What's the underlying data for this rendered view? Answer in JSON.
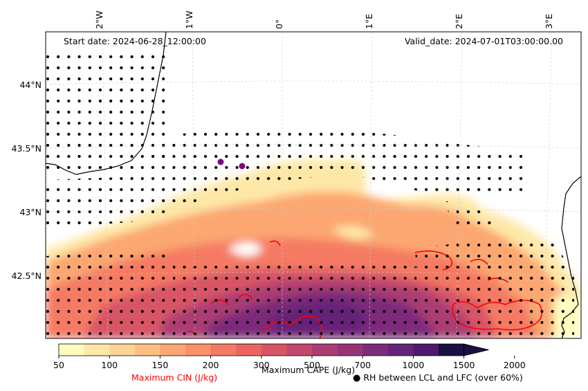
{
  "header": {
    "start_date": "Start date: 2024-06-28_12:00:00",
    "valid_date": "Valid_date: 2024-07-01T03:00:00.00"
  },
  "lon_labels": [
    "2°W",
    "1°W",
    "0°",
    "1°E",
    "2°E",
    "3°E"
  ],
  "lat_labels": [
    "44°N",
    "43.5°N",
    "43°N",
    "42.5°N"
  ],
  "colorbar": {
    "ticks": [
      "50",
      "100",
      "150",
      "200",
      "300",
      "500",
      "700",
      "1000",
      "1500",
      "2000"
    ],
    "colors": [
      "#fffdbf",
      "#fee8a7",
      "#fdd595",
      "#fdc081",
      "#fca771",
      "#fb9168",
      "#f57a63",
      "#ea6562",
      "#d85466",
      "#c2486d",
      "#ab3d73",
      "#953577",
      "#7d2c7a",
      "#652479",
      "#4d1a6e",
      "#1b1042"
    ],
    "title": "Maximum CAPE (J/kg)"
  },
  "legend": {
    "cin_label": "Maximum CIN (J/kg)",
    "cin_color": "#ff0000",
    "rh_label": "RH between LCL and LFC (over 60%)",
    "rh_marker": "●"
  },
  "markers_color": "#800080"
}
